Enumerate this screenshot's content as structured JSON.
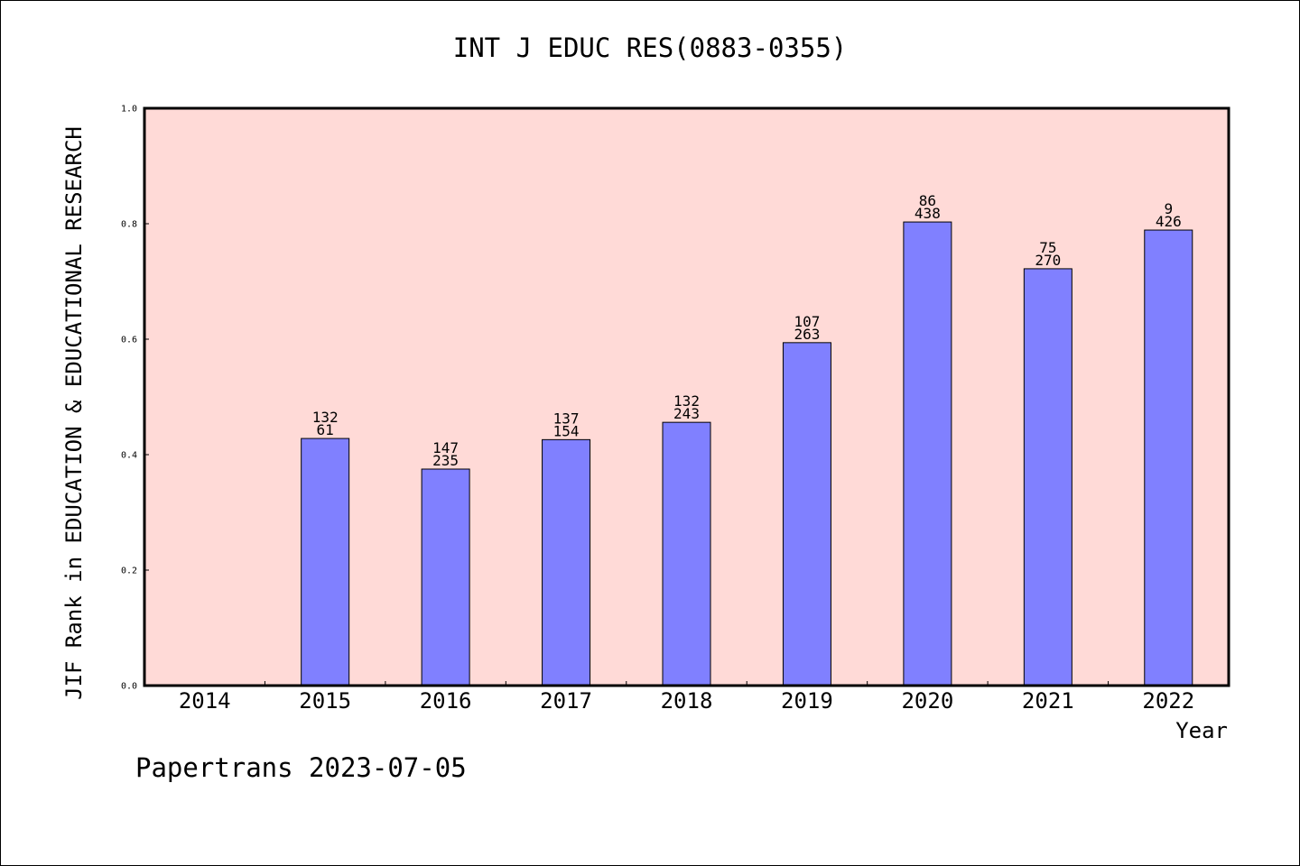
{
  "title": "INT J EDUC RES(0883-0355)",
  "footer": "Papertrans 2023-07-05",
  "colors": {
    "plot_background": "#ffdad7",
    "bar_fill": "#8080ff",
    "bar_stroke": "#000000"
  },
  "chart_data": {
    "type": "bar",
    "title": "INT J EDUC RES(0883-0355)",
    "xlabel": "Year",
    "ylabel": "JIF Rank in EDUCATION & EDUCATIONAL RESEARCH",
    "ylim": [
      0,
      1.0
    ],
    "yticks": [
      "0.0",
      "0.2",
      "0.4",
      "0.6",
      "0.8",
      "1.0"
    ],
    "categories": [
      "2014",
      "2015",
      "2016",
      "2017",
      "2018",
      "2019",
      "2020",
      "2021",
      "2022"
    ],
    "values": [
      null,
      0.428,
      0.375,
      0.426,
      0.456,
      0.594,
      0.803,
      0.722,
      0.789
    ],
    "labels_top": [
      "",
      "132",
      "147",
      "137",
      "132",
      "107",
      "86",
      "75",
      "9"
    ],
    "labels_bottom": [
      "",
      "61",
      "235",
      "154",
      "243",
      "263",
      "438",
      "270",
      "426"
    ],
    "grid": false,
    "legend": "none"
  }
}
